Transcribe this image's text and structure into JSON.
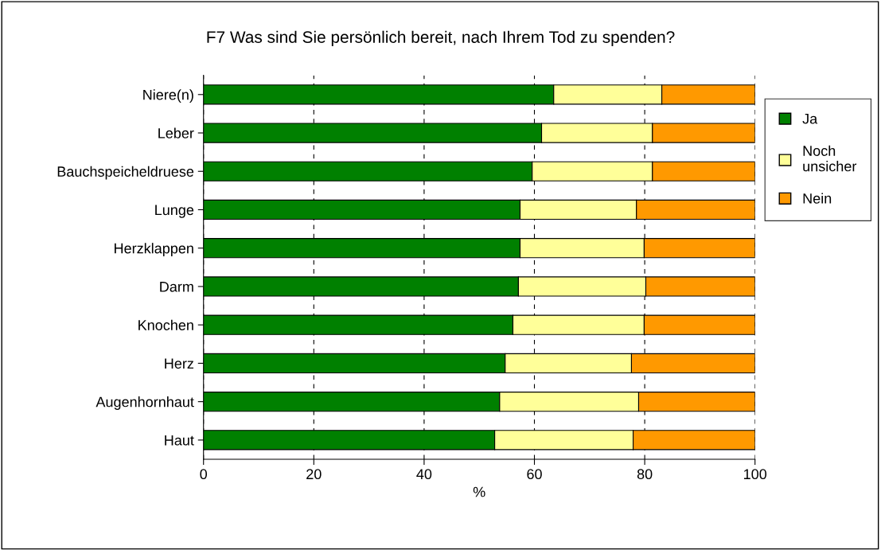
{
  "chart_data": {
    "type": "bar",
    "orientation": "horizontal",
    "stacked": true,
    "title": "F7 Was sind Sie persönlich bereit, nach Ihrem Tod zu spenden?",
    "xlabel": "%",
    "categories": [
      "Niere(n)",
      "Leber",
      "Bauchspeicheldruese",
      "Lunge",
      "Herzklappen",
      "Darm",
      "Knochen",
      "Herz",
      "Augenhornhaut",
      "Haut"
    ],
    "series": [
      {
        "name": "Ja",
        "color": "#008000",
        "values": [
          63.5,
          61.3,
          59.6,
          57.4,
          57.4,
          57.1,
          56.1,
          54.7,
          53.7,
          52.8
        ]
      },
      {
        "name": "Noch\nunsicher",
        "color": "#ffff99",
        "values": [
          19.6,
          20.1,
          21.8,
          21.1,
          22.5,
          23.1,
          23.8,
          22.9,
          25.2,
          25.1
        ]
      },
      {
        "name": "Nein",
        "color": "#ff9900",
        "values": [
          16.9,
          18.6,
          18.6,
          21.5,
          20.1,
          19.8,
          20.1,
          22.4,
          21.1,
          22.1
        ]
      }
    ],
    "xlim": [
      0,
      100
    ],
    "xticks": [
      0,
      20,
      40,
      60,
      80,
      100
    ],
    "grid": "x",
    "legend": "right"
  }
}
